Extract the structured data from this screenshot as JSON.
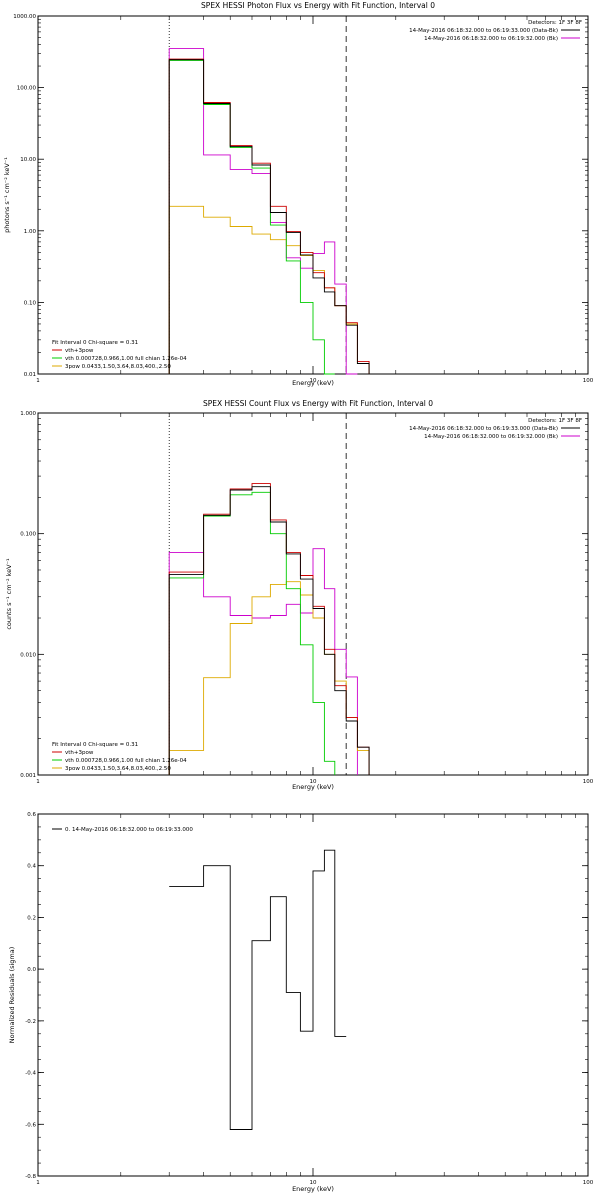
{
  "colors": {
    "data": "#000000",
    "total": "#cc0000",
    "thermal": "#00cc00",
    "powerlaw": "#ddaa00",
    "background": "#cc00cc"
  },
  "chart_data": [
    {
      "type": "line",
      "title": "SPEX HESSI Photon Flux vs Energy with Fit Function, Interval 0",
      "xlabel": "Energy (keV)",
      "ylabel": "photons s⁻¹ cm⁻² keV⁻¹",
      "xscale": "log",
      "yscale": "log",
      "xlim": [
        1,
        100
      ],
      "ylim": [
        0.01,
        1000
      ],
      "x_ticks": [
        {
          "v": 1,
          "label": "1"
        },
        {
          "v": 10,
          "label": "10"
        },
        {
          "v": 100,
          "label": "100"
        }
      ],
      "y_ticks": [
        {
          "v": 0.01,
          "label": "0.01"
        },
        {
          "v": 0.1,
          "label": "0.10"
        },
        {
          "v": 1,
          "label": "1.00"
        },
        {
          "v": 10,
          "label": "10.00"
        },
        {
          "v": 100,
          "label": "100.00"
        },
        {
          "v": 1000,
          "label": "1000.00"
        }
      ],
      "detectors": "Detectors: 1F 3F 8F",
      "legend_right": [
        {
          "text": "14-May-2016 06:18:32.000 to 06:19:33.000 (Data-Bk)",
          "color": "data"
        },
        {
          "text": "14-May-2016 06:18:32.000 to 06:19:32.000 (Bk)",
          "color": "background"
        }
      ],
      "fit_label": "Fit Interval 0   Chi-square = 0.31",
      "legend_left": [
        {
          "text": "vth+3pow",
          "color": "total"
        },
        {
          "text": "vth 0.000728,0.966,1.00  full chian 1.26e-04",
          "color": "thermal"
        },
        {
          "text": "3pow 0.0433,1.50,3.64,8.03,400.,2.50",
          "color": "powerlaw"
        }
      ],
      "vlines": [
        {
          "x": 3.0,
          "style": "dotted"
        },
        {
          "x": 13.2,
          "style": "dashed"
        }
      ],
      "bin_edges": [
        3.0,
        4.0,
        5.0,
        6.0,
        7.0,
        8.0,
        9.0,
        10.0,
        11.0,
        12.0,
        13.2,
        14.5,
        16.0
      ],
      "series": [
        {
          "color": "background",
          "values": [
            350,
            11.5,
            7.2,
            6.3,
            1.3,
            0.42,
            0.3,
            0.48,
            0.7,
            0.18,
            0.01,
            null
          ]
        },
        {
          "color": "powerlaw",
          "values": [
            2.2,
            1.55,
            1.15,
            0.9,
            0.75,
            0.62,
            0.45,
            0.28,
            0.16,
            0.09,
            0.05,
            0.014
          ]
        },
        {
          "color": "thermal",
          "values": [
            240,
            58,
            14.5,
            7.5,
            1.2,
            0.38,
            0.1,
            0.03,
            0.01,
            null,
            null,
            null
          ]
        },
        {
          "color": "total",
          "values": [
            250,
            62,
            15.5,
            8.8,
            2.2,
            0.98,
            0.5,
            0.26,
            0.16,
            0.09,
            0.052,
            0.015
          ]
        },
        {
          "color": "data",
          "values": [
            245,
            60,
            15.0,
            8.3,
            1.8,
            0.95,
            0.46,
            0.22,
            0.14,
            0.09,
            0.048,
            0.014
          ]
        }
      ]
    },
    {
      "type": "line",
      "title": "SPEX HESSI Count Flux vs Energy with Fit Function, Interval 0",
      "xlabel": "Energy (keV)",
      "ylabel": "counts s⁻¹ cm⁻² keV⁻¹",
      "xscale": "log",
      "yscale": "log",
      "xlim": [
        1,
        100
      ],
      "ylim": [
        0.001,
        1.0
      ],
      "x_ticks": [
        {
          "v": 1,
          "label": "1"
        },
        {
          "v": 10,
          "label": "10"
        },
        {
          "v": 100,
          "label": "100"
        }
      ],
      "y_ticks": [
        {
          "v": 0.001,
          "label": "0.001"
        },
        {
          "v": 0.01,
          "label": "0.010"
        },
        {
          "v": 0.1,
          "label": "0.100"
        },
        {
          "v": 1,
          "label": "1.000"
        }
      ],
      "detectors": "Detectors: 1F 3F 8F",
      "legend_right": [
        {
          "text": "14-May-2016 06:18:32.000 to 06:19:33.000 (Data-Bk)",
          "color": "data"
        },
        {
          "text": "14-May-2016 06:18:32.000 to 06:19:32.000 (Bk)",
          "color": "background"
        }
      ],
      "fit_label": "Fit Interval 0   Chi-square = 0.31",
      "legend_left": [
        {
          "text": "vth+3pow",
          "color": "total"
        },
        {
          "text": "vth 0.000728,0.966,1.00  full chian 1.26e-04",
          "color": "thermal"
        },
        {
          "text": "3pow 0.0433,1.50,3.64,8.03,400.,2.50",
          "color": "powerlaw"
        }
      ],
      "vlines": [
        {
          "x": 3.0,
          "style": "dotted"
        },
        {
          "x": 13.2,
          "style": "dashed"
        }
      ],
      "bin_edges": [
        3.0,
        4.0,
        5.0,
        6.0,
        7.0,
        8.0,
        9.0,
        10.0,
        11.0,
        12.0,
        13.2,
        14.5,
        16.0
      ],
      "series": [
        {
          "color": "background",
          "values": [
            0.07,
            0.03,
            0.021,
            0.02,
            0.021,
            0.026,
            0.022,
            0.075,
            0.035,
            0.011,
            0.0065,
            null
          ]
        },
        {
          "color": "powerlaw",
          "values": [
            0.0016,
            0.0064,
            0.018,
            0.03,
            0.038,
            0.04,
            0.031,
            0.02,
            0.01,
            0.006,
            0.003,
            0.0016
          ]
        },
        {
          "color": "thermal",
          "values": [
            0.043,
            0.14,
            0.21,
            0.22,
            0.1,
            0.035,
            0.012,
            0.004,
            0.0013,
            null,
            null,
            null
          ]
        },
        {
          "color": "total",
          "values": [
            0.048,
            0.145,
            0.235,
            0.26,
            0.13,
            0.07,
            0.045,
            0.025,
            0.011,
            0.0055,
            0.003,
            0.0017
          ]
        },
        {
          "color": "data",
          "values": [
            0.046,
            0.142,
            0.23,
            0.245,
            0.125,
            0.068,
            0.042,
            0.024,
            0.01,
            0.005,
            0.0028,
            0.0017
          ]
        }
      ]
    },
    {
      "type": "line",
      "title": "",
      "xlabel": "Energy (keV)",
      "ylabel": "Normalized Residuals (sigma)",
      "xscale": "log",
      "yscale": "linear",
      "xlim": [
        1,
        100
      ],
      "ylim": [
        -0.8,
        0.6
      ],
      "x_ticks": [
        {
          "v": 1,
          "label": "1"
        },
        {
          "v": 10,
          "label": "10"
        },
        {
          "v": 100,
          "label": "100"
        }
      ],
      "y_ticks": [
        {
          "v": -0.8,
          "label": "-0.8"
        },
        {
          "v": -0.6,
          "label": "-0.6"
        },
        {
          "v": -0.4,
          "label": "-0.4"
        },
        {
          "v": -0.2,
          "label": "-0.2"
        },
        {
          "v": 0.0,
          "label": "0.0"
        },
        {
          "v": 0.2,
          "label": "0.2"
        },
        {
          "v": 0.4,
          "label": "0.4"
        },
        {
          "v": 0.6,
          "label": "0.6"
        }
      ],
      "legend_left_top": [
        {
          "text": "0. 14-May-2016 06:18:32.000 to 06:19:33.000",
          "color": "data"
        }
      ],
      "bin_edges": [
        3.0,
        4.0,
        5.0,
        6.0,
        7.0,
        8.0,
        9.0,
        10.0,
        11.0,
        12.0,
        13.2
      ],
      "series": [
        {
          "color": "data",
          "values": [
            0.32,
            0.4,
            -0.62,
            0.11,
            0.28,
            -0.09,
            -0.24,
            0.38,
            0.46,
            -0.26
          ]
        }
      ]
    }
  ]
}
